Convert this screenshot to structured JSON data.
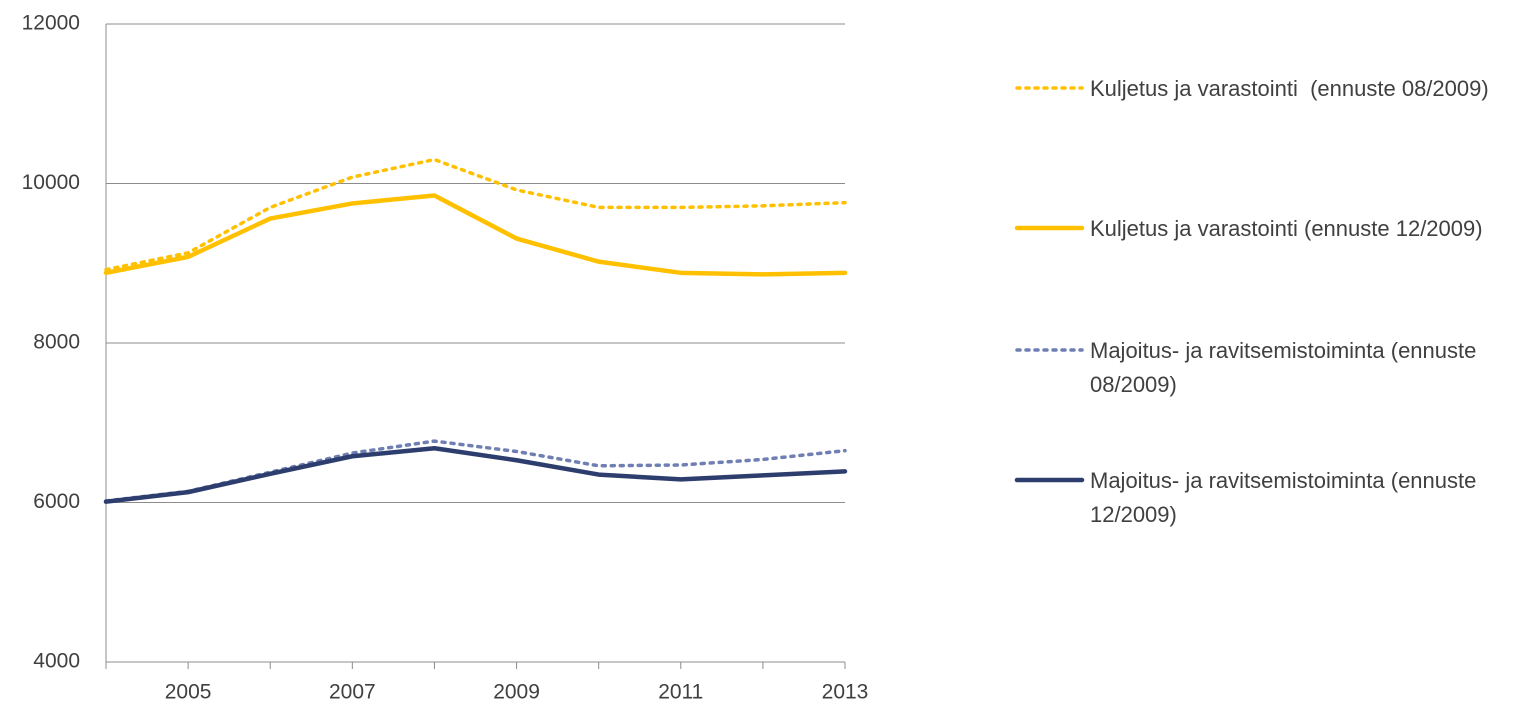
{
  "chart_data": {
    "type": "line",
    "categories": [
      null,
      "2005",
      null,
      "2007",
      null,
      "2009",
      null,
      "2011",
      null,
      "2013"
    ],
    "ylim": [
      4000,
      12000
    ],
    "yticks": [
      4000,
      6000,
      8000,
      10000,
      12000
    ],
    "grid": true,
    "legend": "right",
    "series": [
      {
        "name": "Kuljetus ja varastointi  (ennuste 08/2009)",
        "color": "#ffc000",
        "line_style": "dotted",
        "values": [
          8920,
          9130,
          9700,
          10080,
          10300,
          9920,
          9700,
          9700,
          9720,
          9760
        ]
      },
      {
        "name": "Kuljetus ja varastointi (ennuste 12/2009)",
        "color": "#ffc000",
        "line_style": "solid",
        "values": [
          8880,
          9080,
          9560,
          9750,
          9850,
          9310,
          9020,
          8880,
          8860,
          8880
        ]
      },
      {
        "name": "Majoitus- ja ravitsemistoiminta (ennuste 08/2009)",
        "color": "#6f7fb3",
        "line_style": "dotted",
        "values": [
          6020,
          6140,
          6380,
          6620,
          6770,
          6640,
          6460,
          6470,
          6540,
          6650
        ]
      },
      {
        "name": "Majoitus- ja ravitsemistoiminta (ennuste 12/2009)",
        "color": "#2d3e6e",
        "line_style": "solid",
        "values": [
          6010,
          6130,
          6360,
          6580,
          6680,
          6530,
          6350,
          6290,
          6340,
          6390
        ]
      }
    ]
  }
}
